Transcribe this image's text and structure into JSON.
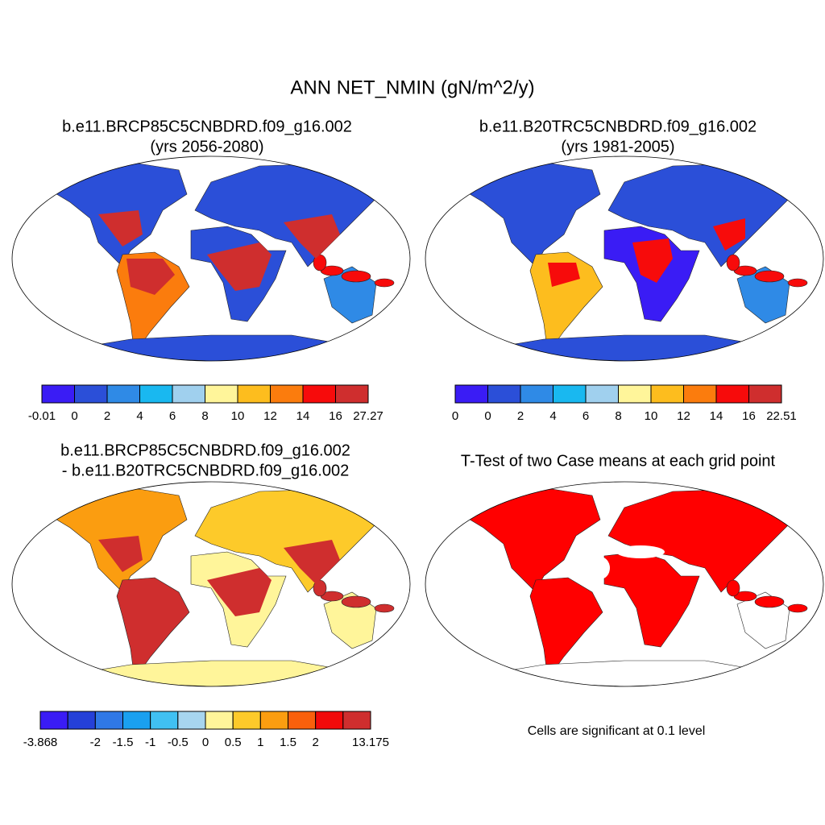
{
  "title": "ANN NET_NMIN (gN/m^2/y)",
  "panels": [
    {
      "title": "b.e11.BRCP85C5CNBDRD.f09_g16.002",
      "subtitle": "(yrs 2056-2080)",
      "colorbar": {
        "colors": [
          "#3a1cf5",
          "#2b4fd8",
          "#2f8ae6",
          "#19b8f0",
          "#a0d0ee",
          "#fff59a",
          "#fdbd1e",
          "#fb7c0d",
          "#f70b0b",
          "#cf2e2e"
        ],
        "labels": [
          "-0.01",
          "0",
          "2",
          "4",
          "6",
          "8",
          "10",
          "12",
          "14",
          "16",
          "27.27"
        ]
      }
    },
    {
      "title": "b.e11.B20TRC5CNBDRD.f09_g16.002",
      "subtitle": "(yrs 1981-2005)",
      "colorbar": {
        "colors": [
          "#3a1cf5",
          "#2b4fd8",
          "#2f8ae6",
          "#19b8f0",
          "#a0d0ee",
          "#fff59a",
          "#fdbd1e",
          "#fb7c0d",
          "#f70b0b",
          "#cf2e2e"
        ],
        "labels": [
          "0",
          "0",
          "2",
          "4",
          "6",
          "8",
          "10",
          "12",
          "14",
          "16",
          "22.51"
        ]
      }
    },
    {
      "title": "b.e11.BRCP85C5CNBDRD.f09_g16.002",
      "subtitle": "- b.e11.B20TRC5CNBDRD.f09_g16.002",
      "colorbar": {
        "colors": [
          "#3a1cf5",
          "#2540d8",
          "#2f78e6",
          "#1aa0f0",
          "#40c0f2",
          "#a7d5ef",
          "#fff59a",
          "#fdca2a",
          "#fb9d10",
          "#f9600c",
          "#f20a0a",
          "#cf2e2e"
        ],
        "labels": [
          "-3.868",
          null,
          "-2",
          "-1.5",
          "-1",
          "-0.5",
          "0",
          "0.5",
          "1",
          "1.5",
          "2",
          null,
          "13.175"
        ]
      }
    },
    {
      "title": "T-Test of two Case means at each grid point",
      "note": "Cells are significant at 0.1 level"
    }
  ]
}
